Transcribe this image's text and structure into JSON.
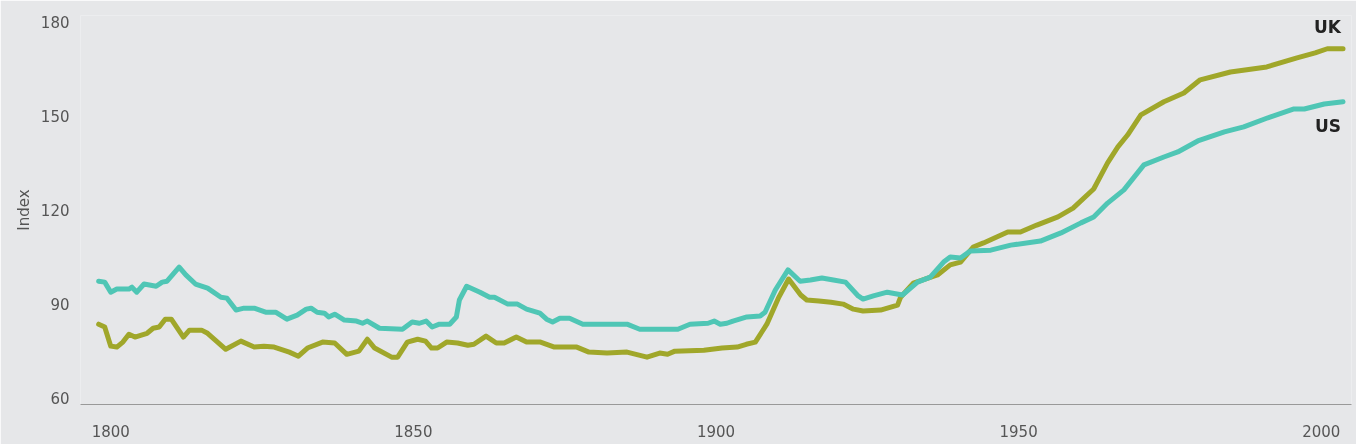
{
  "chart_data": {
    "type": "line",
    "ylabel": "Index",
    "xlim": [
      1795,
      2005
    ],
    "ylim": [
      58,
      182
    ],
    "xticks": [
      1800,
      1850,
      1900,
      1950,
      2000
    ],
    "yticks": [
      60,
      90,
      120,
      150,
      180
    ],
    "series": [
      {
        "name": "UK",
        "color": "#a0a72a",
        "x": [
          1798,
          1799,
          1800,
          1801,
          1802,
          1803,
          1804,
          1806,
          1807,
          1808,
          1809,
          1810,
          1812,
          1813,
          1815,
          1816,
          1819,
          1821.5,
          1823.7,
          1825.3,
          1827,
          1829.5,
          1831,
          1832.5,
          1835,
          1837,
          1839,
          1841,
          1842.4,
          1843.6,
          1846.4,
          1847.4,
          1849,
          1850.7,
          1852,
          1853,
          1854,
          1855.5,
          1857.3,
          1859,
          1860,
          1862,
          1863.7,
          1865,
          1867,
          1868.7,
          1871,
          1873.3,
          1877,
          1879,
          1882,
          1885.3,
          1888.6,
          1890.7,
          1892,
          1893.2,
          1898,
          1901,
          1903.5,
          1905,
          1906.5,
          1908.4,
          1910.3,
          1912,
          1914,
          1915,
          1917,
          1919,
          1921,
          1922.7,
          1924.3,
          1927.2,
          1930,
          1930.5,
          1932.6,
          1936.6,
          1938.7,
          1940.4,
          1942.5,
          1944.2,
          1948.2,
          1950.3,
          1953,
          1956.5,
          1959,
          1962.4,
          1964.7,
          1966.4,
          1968,
          1970.2,
          1974,
          1977.3,
          1980,
          1985,
          1991,
          1996,
          1999,
          2001,
          2003.6
        ],
        "values": [
          83.6,
          82.7,
          76.6,
          76.3,
          77.9,
          80.4,
          79.5,
          80.7,
          82.3,
          82.7,
          85.2,
          85.2,
          79.5,
          81.7,
          81.7,
          80.7,
          75.6,
          78.2,
          76.3,
          76.6,
          76.3,
          74.7,
          73.4,
          76,
          77.9,
          77.6,
          74,
          75,
          78.8,
          76,
          73.1,
          73.1,
          77.9,
          78.8,
          78.2,
          76,
          76,
          77.9,
          77.6,
          76.9,
          77.2,
          79.8,
          77.6,
          77.6,
          79.5,
          77.9,
          77.9,
          76.3,
          76.3,
          74.7,
          74.4,
          74.7,
          73.1,
          74.4,
          74,
          75,
          75.3,
          76,
          76.3,
          77.2,
          77.9,
          83.6,
          91.9,
          98,
          92.9,
          91.3,
          91,
          90.6,
          90,
          88.4,
          87.8,
          88.1,
          89.7,
          92.2,
          96.7,
          99.3,
          102.5,
          103.4,
          108.2,
          109.5,
          113,
          113,
          115.2,
          117.8,
          120.6,
          126.7,
          135,
          140.1,
          143.9,
          150.3,
          154.5,
          157.3,
          161.5,
          164,
          165.6,
          168.5,
          170.1,
          171.4,
          171.4
        ]
      },
      {
        "name": "US",
        "color": "#4fc6b5",
        "x": [
          1798,
          1799,
          1800,
          1801,
          1803,
          1803.5,
          1804.3,
          1805.5,
          1807.5,
          1808.5,
          1809.3,
          1811.3,
          1812.4,
          1814,
          1816,
          1818.2,
          1819.2,
          1820.7,
          1822,
          1823.7,
          1825.7,
          1827.3,
          1829.1,
          1830.8,
          1832.3,
          1833.1,
          1834.1,
          1835.3,
          1836,
          1837,
          1838.6,
          1840.6,
          1841.6,
          1842.4,
          1844.4,
          1848.2,
          1849.8,
          1851,
          1852.1,
          1853.1,
          1854.3,
          1856,
          1857.1,
          1857.6,
          1858.8,
          1861,
          1862.6,
          1863.4,
          1865.6,
          1867.2,
          1868.7,
          1870.9,
          1872,
          1873,
          1874.2,
          1875.8,
          1878,
          1885.3,
          1887.4,
          1893.7,
          1895.7,
          1898.7,
          1899.7,
          1900.7,
          1901.8,
          1902.8,
          1905.1,
          1907.3,
          1908.1,
          1909.8,
          1911.9,
          1913.9,
          1915.6,
          1917.5,
          1919.4,
          1921.4,
          1923.5,
          1924.3,
          1926,
          1928.3,
          1930.8,
          1933.3,
          1935.4,
          1937.6,
          1938.7,
          1940.4,
          1942,
          1945.4,
          1948.7,
          1953.6,
          1957,
          1960.3,
          1962.4,
          1964.7,
          1967.4,
          1970.7,
          1974,
          1976.3,
          1979.6,
          1984,
          1987.2,
          1991.2,
          1995.5,
          1997.2,
          2000.5,
          2003.6
        ],
        "values": [
          97.3,
          97,
          93.8,
          94.8,
          94.8,
          95.4,
          93.8,
          96.4,
          95.7,
          97,
          97.3,
          101.8,
          99.3,
          96.4,
          95.1,
          92.2,
          91.9,
          88.1,
          88.7,
          88.7,
          87.4,
          87.4,
          85.2,
          86.5,
          88.4,
          88.7,
          87.4,
          87.1,
          85.9,
          86.8,
          84.9,
          84.6,
          83.9,
          84.6,
          82.3,
          82,
          84.3,
          83.9,
          84.6,
          82.7,
          83.6,
          83.6,
          85.9,
          91.3,
          95.7,
          93.8,
          92.2,
          92.2,
          90,
          90,
          88.4,
          87.1,
          85.2,
          84.3,
          85.5,
          85.5,
          83.6,
          83.6,
          82,
          82,
          83.6,
          83.9,
          84.6,
          83.6,
          83.9,
          84.6,
          85.9,
          86.2,
          87.4,
          94.5,
          100.9,
          97.3,
          97.7,
          98.3,
          97.7,
          97,
          92.6,
          91.6,
          92.6,
          93.8,
          92.9,
          97,
          98.6,
          103.4,
          105,
          104.7,
          106.9,
          107.2,
          108.8,
          110.1,
          112.7,
          115.9,
          117.8,
          122.2,
          126.4,
          134.4,
          136.9,
          138.5,
          142,
          144.9,
          146.5,
          149.4,
          152.2,
          152.2,
          153.8,
          154.5
        ]
      }
    ]
  }
}
